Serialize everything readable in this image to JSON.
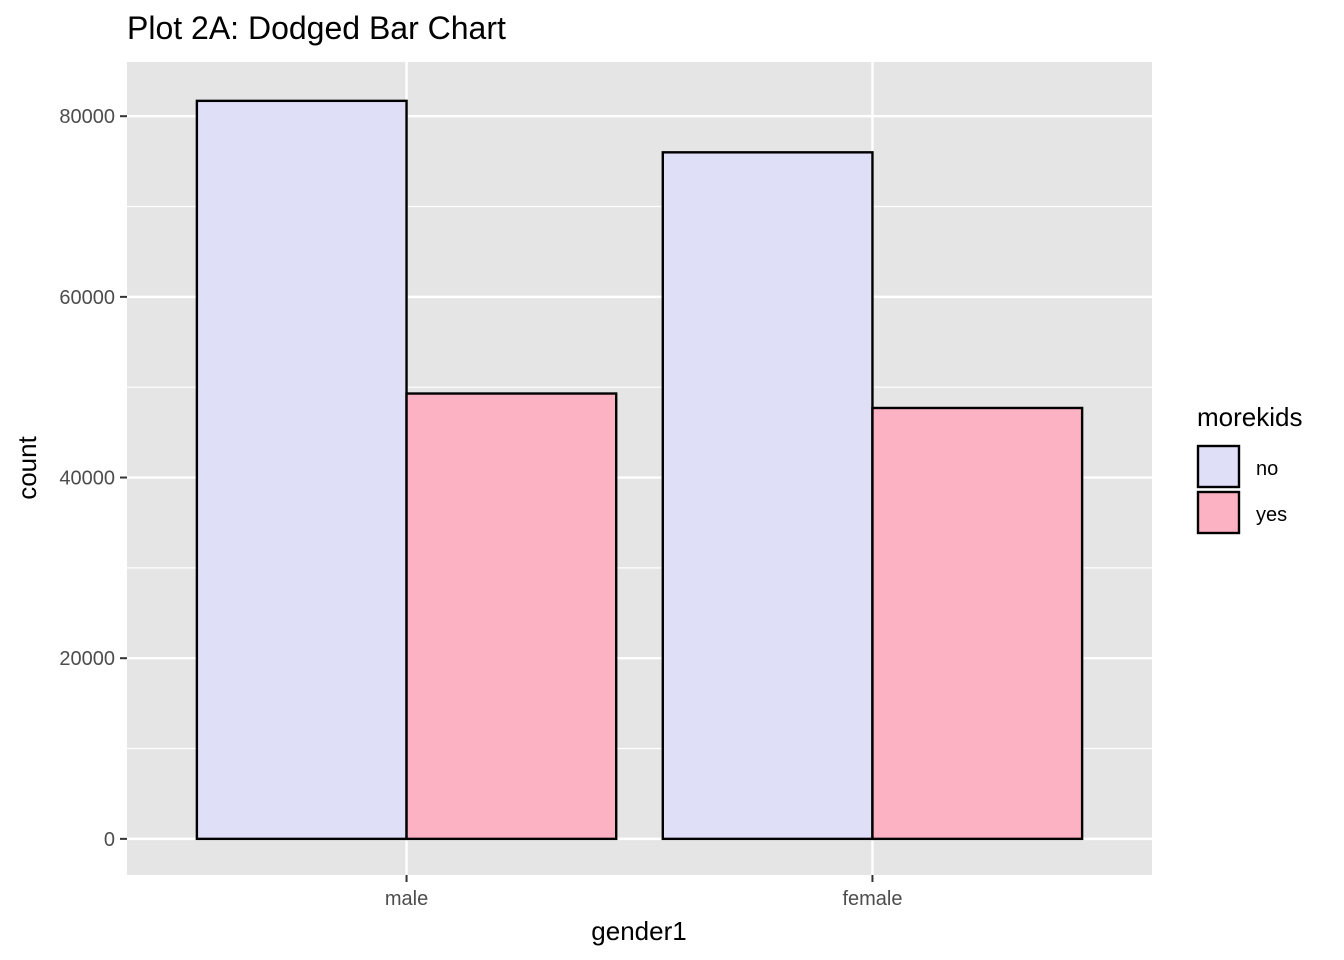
{
  "chart_data": {
    "type": "bar",
    "title": "Plot 2A: Dodged Bar Chart",
    "xlabel": "gender1",
    "ylabel": "count",
    "categories": [
      "male",
      "female"
    ],
    "series": [
      {
        "name": "no",
        "values": [
          81700,
          76000
        ],
        "color": "#dfdff8"
      },
      {
        "name": "yes",
        "values": [
          49300,
          47700
        ],
        "color": "#fdb2c4"
      }
    ],
    "ylim": [
      -4000,
      86000
    ],
    "yticks": [
      0,
      20000,
      40000,
      60000,
      80000
    ],
    "ytick_labels": [
      "0",
      "20000",
      "40000",
      "60000",
      "80000"
    ],
    "grid": true,
    "legend": {
      "title": "morekids",
      "position": "right"
    },
    "panel_background": "#e5e5e5",
    "bar_outline": "#000000"
  }
}
